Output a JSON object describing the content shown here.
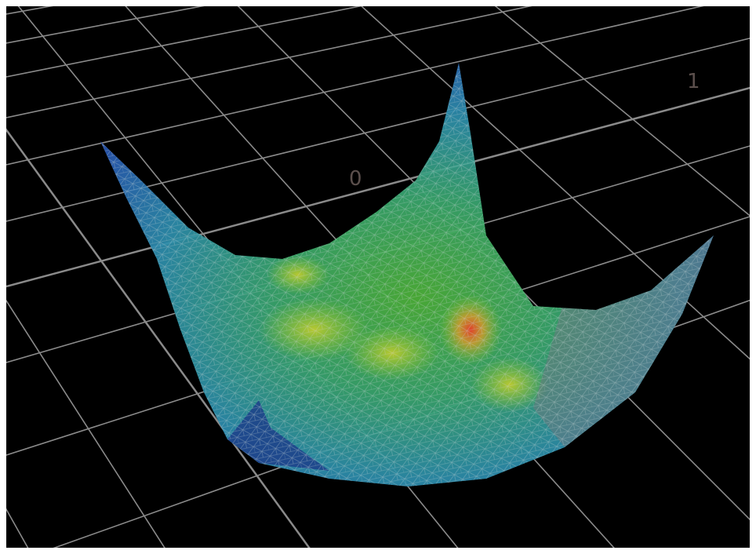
{
  "axis_labels": [
    "0",
    "1"
  ]
}
